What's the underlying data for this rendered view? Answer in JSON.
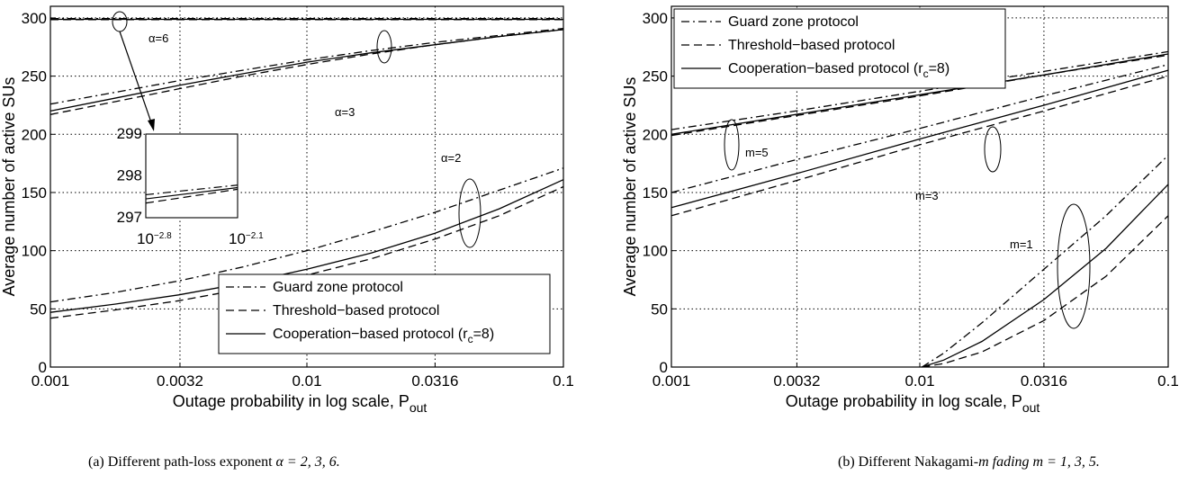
{
  "chart_data": [
    {
      "type": "line",
      "panel_caption": "(a) Different path-loss exponent α = 2, 3, 6.",
      "xlabel": "Outage probability in log scale, P",
      "xlabel_sub": "out",
      "ylabel": "Average number of active SUs",
      "x_scale": "log",
      "xlim": [
        0.001,
        0.1
      ],
      "ylim": [
        0,
        310
      ],
      "xticks": [
        "0.001",
        "0.0032",
        "0.01",
        "0.0316",
        "0.1"
      ],
      "yticks": [
        "0",
        "50",
        "100",
        "150",
        "200",
        "250",
        "300"
      ],
      "grid": true,
      "legend": {
        "placement": "bottom-right",
        "entries": [
          {
            "label": "Guard zone protocol",
            "style": "dashdot"
          },
          {
            "label": "Threshold−based protocol",
            "style": "dashed"
          },
          {
            "label": "Cooperation−based protocol (r",
            "sub": "c",
            "suffix": "=8)",
            "style": "solid"
          }
        ]
      },
      "x": [
        0.001,
        0.00178,
        0.00316,
        0.00562,
        0.01,
        0.0178,
        0.0316,
        0.0562,
        0.1
      ],
      "series": [
        {
          "group": "α=6",
          "style": "dashdot",
          "values": [
            299.5,
            299.5,
            299.5,
            299.5,
            299.5,
            299.5,
            299.5,
            299.5,
            299.5
          ]
        },
        {
          "group": "α=6",
          "style": "solid",
          "values": [
            298.8,
            298.8,
            298.8,
            298.8,
            298.8,
            298.8,
            298.8,
            298.8,
            298.8
          ]
        },
        {
          "group": "α=6",
          "style": "dashed",
          "values": [
            298.5,
            298.5,
            298.5,
            298.5,
            298.5,
            298.5,
            298.5,
            298.5,
            298.5
          ]
        },
        {
          "group": "α=3",
          "style": "dashdot",
          "values": [
            226,
            236,
            246,
            255,
            264,
            272,
            279,
            285,
            291
          ]
        },
        {
          "group": "α=3",
          "style": "solid",
          "values": [
            220,
            231,
            242,
            252,
            262,
            270,
            277,
            284,
            290
          ]
        },
        {
          "group": "α=3",
          "style": "dashed",
          "values": [
            217,
            228,
            239,
            250,
            260,
            269,
            277,
            284,
            290
          ]
        },
        {
          "group": "α=2",
          "style": "dashdot",
          "values": [
            56,
            64,
            74,
            86,
            100,
            116,
            133,
            152,
            171
          ]
        },
        {
          "group": "α=2",
          "style": "solid",
          "values": [
            47,
            54,
            62,
            72,
            84,
            98,
            115,
            136,
            161
          ]
        },
        {
          "group": "α=2",
          "style": "dashed",
          "values": [
            42,
            49,
            57,
            67,
            79,
            93,
            110,
            130,
            155
          ]
        }
      ],
      "annotations": [
        "α=6",
        "α=3",
        "α=2"
      ],
      "inset": {
        "xtick_base": "10",
        "xticks_exp": [
          "−2.8",
          "−2.1"
        ],
        "yticks": [
          "297",
          "298",
          "299"
        ],
        "ylim": [
          297,
          299
        ],
        "series": [
          {
            "style": "dashdot",
            "values": [
              297.55,
              297.78
            ]
          },
          {
            "style": "solid",
            "values": [
              297.45,
              297.72
            ]
          },
          {
            "style": "dashed",
            "values": [
              297.35,
              297.68
            ]
          }
        ]
      }
    },
    {
      "type": "line",
      "panel_caption": "(b) Different Nakagami-m fading m = 1, 3, 5.",
      "xlabel": "Outage probability in log scale, P",
      "xlabel_sub": "out",
      "ylabel": "Average number of active SUs",
      "x_scale": "log",
      "xlim": [
        0.001,
        0.1
      ],
      "ylim": [
        0,
        310
      ],
      "xticks": [
        "0.001",
        "0.0032",
        "0.01",
        "0.0316",
        "0.1"
      ],
      "yticks": [
        "0",
        "50",
        "100",
        "150",
        "200",
        "250",
        "300"
      ],
      "grid": true,
      "legend": {
        "placement": "top-left",
        "entries": [
          {
            "label": "Guard zone protocol",
            "style": "dashdot"
          },
          {
            "label": "Threshold−based protocol",
            "style": "dashed"
          },
          {
            "label": "Cooperation−based protocol (r",
            "sub": "c",
            "suffix": "=8)",
            "style": "solid"
          }
        ]
      },
      "series": [
        {
          "group": "m=5",
          "style": "dashdot",
          "x": [
            0.001,
            0.00316,
            0.01,
            0.0316,
            0.1
          ],
          "values": [
            204,
            220,
            237,
            254,
            271
          ]
        },
        {
          "group": "m=5",
          "style": "solid",
          "x": [
            0.001,
            0.00316,
            0.01,
            0.0316,
            0.1
          ],
          "values": [
            200,
            217,
            234,
            251,
            269
          ]
        },
        {
          "group": "m=5",
          "style": "dashed",
          "x": [
            0.001,
            0.00316,
            0.01,
            0.0316,
            0.1
          ],
          "values": [
            199,
            216,
            233,
            251,
            268
          ]
        },
        {
          "group": "m=3",
          "style": "dashdot",
          "x": [
            0.001,
            0.00316,
            0.01,
            0.0316,
            0.1
          ],
          "values": [
            150,
            178,
            205,
            233,
            260
          ]
        },
        {
          "group": "m=3",
          "style": "solid",
          "x": [
            0.001,
            0.00316,
            0.01,
            0.0316,
            0.1
          ],
          "values": [
            137,
            166,
            196,
            225,
            255
          ]
        },
        {
          "group": "m=3",
          "style": "dashed",
          "x": [
            0.001,
            0.00316,
            0.01,
            0.0316,
            0.1
          ],
          "values": [
            130,
            160,
            191,
            220,
            250
          ]
        },
        {
          "group": "m=1",
          "style": "dashdot",
          "x": [
            0.0102,
            0.0125,
            0.0178,
            0.0316,
            0.0562,
            0.1
          ],
          "values": [
            0,
            12,
            38,
            84,
            130,
            182
          ]
        },
        {
          "group": "m=1",
          "style": "solid",
          "x": [
            0.0102,
            0.0125,
            0.0178,
            0.0316,
            0.0562,
            0.1
          ],
          "values": [
            0,
            6,
            22,
            58,
            102,
            157
          ]
        },
        {
          "group": "m=1",
          "style": "dashed",
          "x": [
            0.0102,
            0.0125,
            0.0178,
            0.0316,
            0.0562,
            0.1
          ],
          "values": [
            0,
            3,
            13,
            40,
            78,
            130
          ]
        }
      ],
      "annotations": [
        "m=5",
        "m=3",
        "m=1"
      ]
    }
  ]
}
